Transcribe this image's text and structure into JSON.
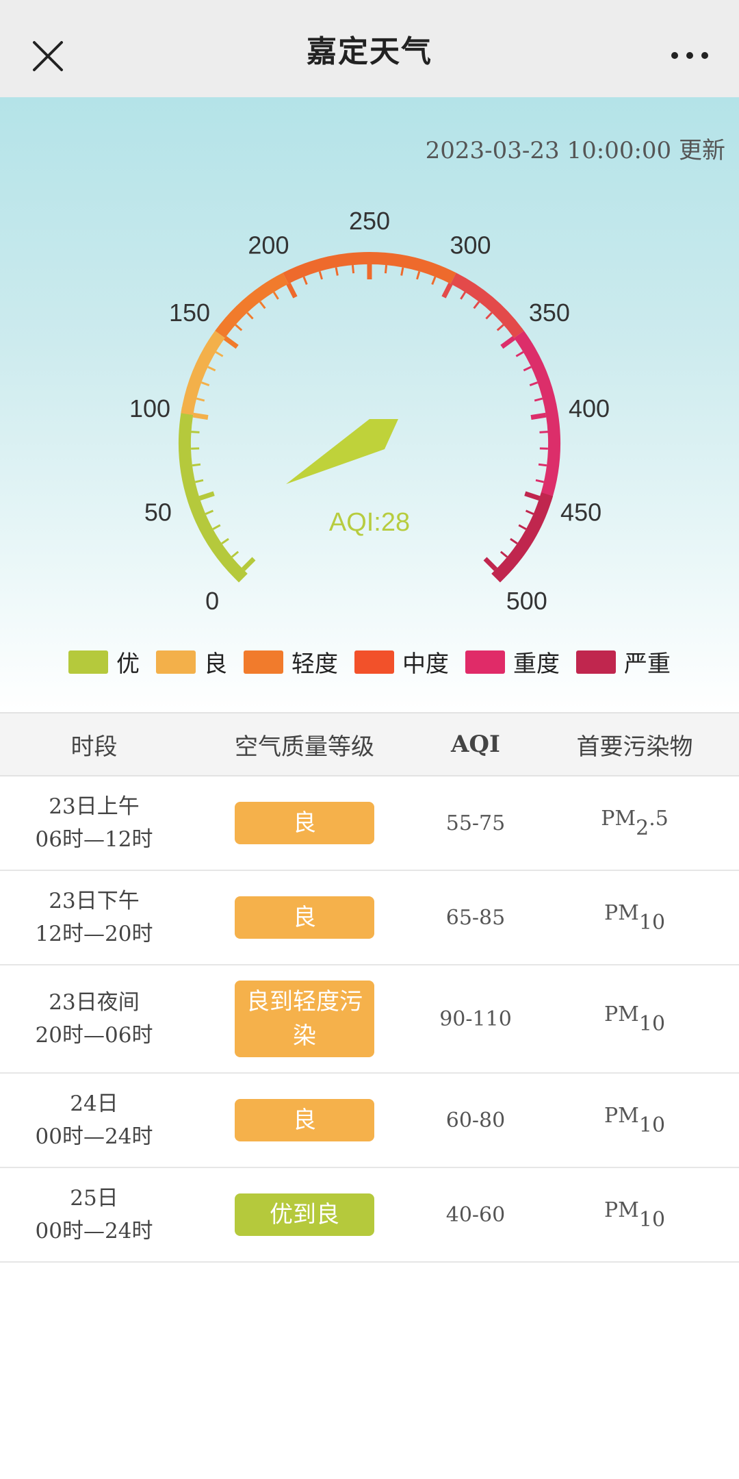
{
  "header": {
    "title": "嘉定天气",
    "close_icon": "close-icon",
    "more_icon": "more-icon"
  },
  "update_time": "2023-03-23 10:00:00 更新",
  "gauge": {
    "aqi_label": "AQI:28",
    "aqi_value": 28,
    "min": 0,
    "max": 500,
    "ticks": [
      "0",
      "50",
      "100",
      "150",
      "200",
      "250",
      "300",
      "350",
      "400",
      "450",
      "500"
    ],
    "bands": [
      {
        "from": 0,
        "to": 100,
        "color": "#b5c93c"
      },
      {
        "from": 100,
        "to": 150,
        "color": "#f3b04a"
      },
      {
        "from": 150,
        "to": 200,
        "color": "#f17b2c"
      },
      {
        "from": 200,
        "to": 300,
        "color": "#ee6a2c"
      },
      {
        "from": 300,
        "to": 350,
        "color": "#e34a4a"
      },
      {
        "from": 350,
        "to": 450,
        "color": "#dc2e6a"
      },
      {
        "from": 450,
        "to": 500,
        "color": "#c0264e"
      }
    ],
    "needle_color": "#bfd23a"
  },
  "legend": [
    {
      "label": "优",
      "color": "#b5c93c"
    },
    {
      "label": "良",
      "color": "#f3b04a"
    },
    {
      "label": "轻度",
      "color": "#f17b2c"
    },
    {
      "label": "中度",
      "color": "#f2512a"
    },
    {
      "label": "重度",
      "color": "#e02b68"
    },
    {
      "label": "严重",
      "color": "#c0264e"
    }
  ],
  "table": {
    "headers": {
      "period": "时段",
      "level": "空气质量等级",
      "aqi": "AQI",
      "pollutant": "首要污染物"
    },
    "rows": [
      {
        "day": "23日上午",
        "hours": "06时—12时",
        "level": "良",
        "level_color": "#f5b14b",
        "aqi": "55-75",
        "pollutant_base": "PM",
        "pollutant_sub": "2",
        "pollutant_tail": ".5"
      },
      {
        "day": "23日下午",
        "hours": "12时—20时",
        "level": "良",
        "level_color": "#f5b14b",
        "aqi": "65-85",
        "pollutant_base": "PM",
        "pollutant_sub": "10",
        "pollutant_tail": ""
      },
      {
        "day": "23日夜间",
        "hours": "20时—06时",
        "level": "良到轻度污染",
        "level_color": "#f5b14b",
        "aqi": "90-110",
        "pollutant_base": "PM",
        "pollutant_sub": "10",
        "pollutant_tail": ""
      },
      {
        "day": "24日",
        "hours": "00时—24时",
        "level": "良",
        "level_color": "#f5b14b",
        "aqi": "60-80",
        "pollutant_base": "PM",
        "pollutant_sub": "10",
        "pollutant_tail": ""
      },
      {
        "day": "25日",
        "hours": "00时—24时",
        "level": "优到良",
        "level_color": "#b5c93c",
        "aqi": "40-60",
        "pollutant_base": "PM",
        "pollutant_sub": "10",
        "pollutant_tail": ""
      }
    ]
  }
}
